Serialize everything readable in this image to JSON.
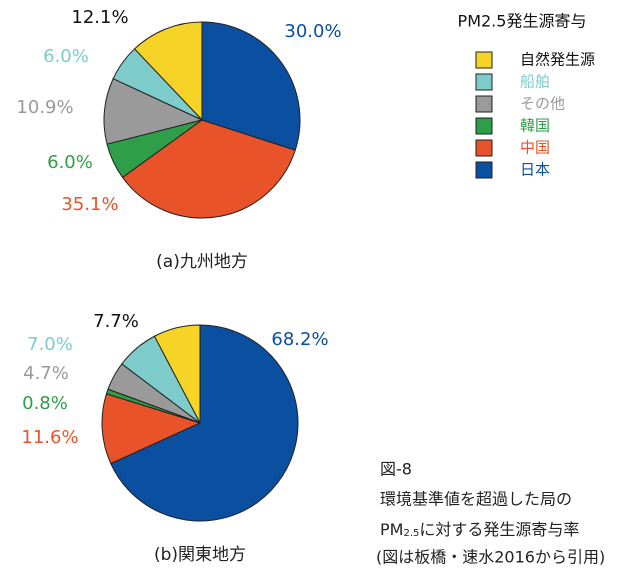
{
  "legend": {
    "title": "PM2.5発生源寄与",
    "labels": [
      "自然発生源",
      "船舶",
      "その他",
      "韓国",
      "中国",
      "日本"
    ],
    "colors": [
      "#f5d327",
      "#7ecbcb",
      "#9a9a9a",
      "#2e9e48",
      "#e8532a",
      "#0a4fa0"
    ],
    "text_colors": [
      "#111111",
      "#7ecbcb",
      "#9a9a9a",
      "#2e9e48",
      "#e8532a",
      "#0a4fa0"
    ]
  },
  "chart_data": [
    {
      "type": "pie",
      "title": "(a)九州地方",
      "values": [
        12.1,
        6.0,
        10.9,
        6.0,
        35.1,
        30.0
      ],
      "value_labels": [
        "12.1%",
        "6.0%",
        "10.9%",
        "6.0%",
        "35.1%",
        "30.0%"
      ]
    },
    {
      "type": "pie",
      "title": "(b)関東地方",
      "values": [
        7.7,
        7.0,
        4.7,
        0.8,
        11.6,
        68.2
      ],
      "value_labels": [
        "7.7%",
        "7.0%",
        "4.7%",
        "0.8%",
        "11.6%",
        "68.2%"
      ]
    }
  ],
  "caption": {
    "figure": "図-8",
    "line1": "環境基準値を超過した局の",
    "line2_a": "PM",
    "line2_sub": "2.5",
    "line2_b": "に対する発生源寄与率",
    "line3": "(図は板橋・速水2016から引用)"
  }
}
